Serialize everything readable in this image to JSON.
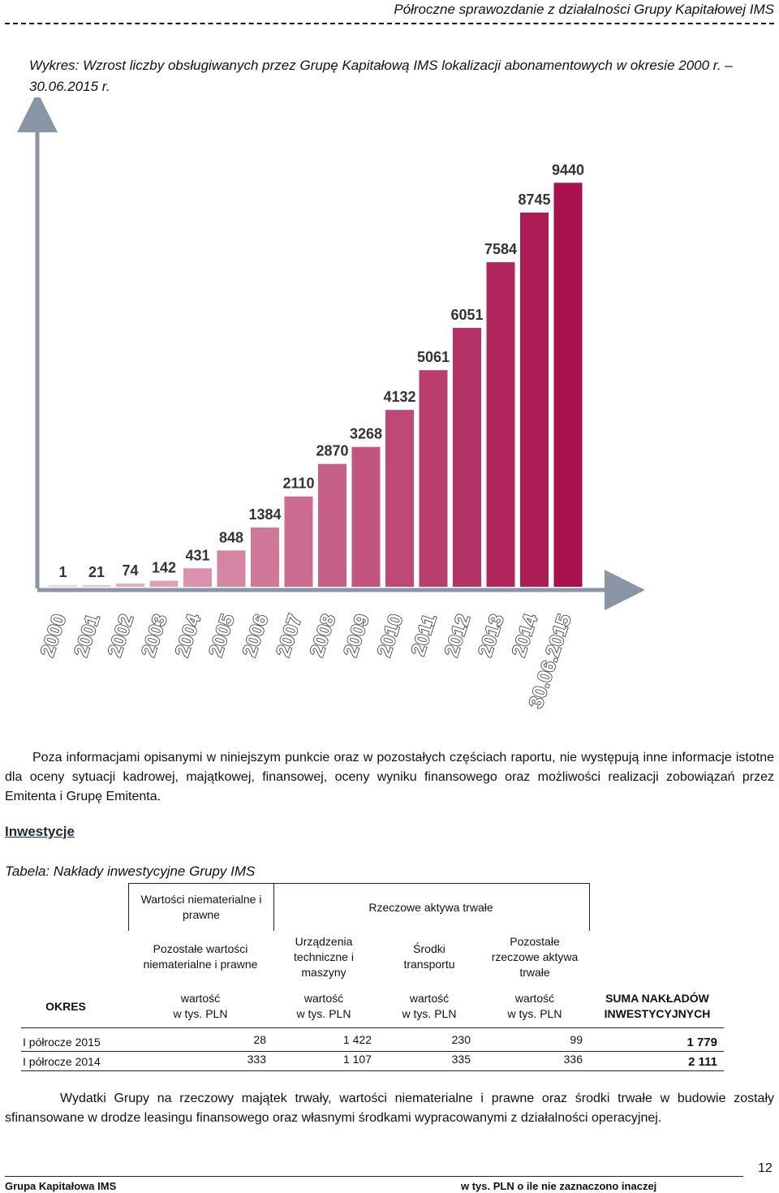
{
  "header": {
    "title": "Półroczne sprawozdanie z działalności Grupy Kapitałowej IMS"
  },
  "chart_caption": "Wykres: Wzrost liczby obsługiwanych przez Grupę Kapitałową IMS lokalizacji abonamentowych w okresie 2000 r. – 30.06.2015 r.",
  "chart_data": {
    "type": "bar",
    "title": "Wykres: Wzrost liczby obsługiwanych przez Grupę Kapitałową IMS lokalizacji abonamentowych w okresie 2000 r. – 30.06.2015 r.",
    "categories": [
      "2000",
      "2001",
      "2002",
      "2003",
      "2004",
      "2005",
      "2006",
      "2007",
      "2008",
      "2009",
      "2010",
      "2011",
      "2012",
      "2013",
      "2014",
      "30.06.2015"
    ],
    "values": [
      1,
      21,
      74,
      142,
      431,
      848,
      1384,
      2110,
      2870,
      3268,
      4132,
      5061,
      6051,
      7584,
      8745,
      9440
    ],
    "ylim": [
      0,
      11000
    ],
    "grid": false,
    "legend": "none",
    "data_labels": true,
    "colors": {
      "light": "#f3cfdb",
      "dark": "#a8114d",
      "axis": "#8a96a6"
    }
  },
  "paragraph_1": "Poza informacjami opisanymi w niniejszym punkcie oraz w pozostałych częściach raportu, nie występują inne informacje istotne dla oceny sytuacji kadrowej, majątkowej, finansowej, oceny wyniku finansowego oraz możliwości realizacji zobowiązań przez Emitenta i Grupę Emitenta.",
  "section_heading": "Inwestycje",
  "table_caption": "Tabela: Nakłady inwestycyjne Grupy IMS",
  "table": {
    "group_wni": "Wartości niematerialne i prawne",
    "group_rat": "Rzeczowe aktywa trwałe",
    "col_headers": [
      "Pozostałe wartości niematerialne i prawne",
      "Urządzenia techniczne i maszyny",
      "Środki transportu",
      "Pozostałe rzeczowe aktywa trwałe"
    ],
    "okres_label": "OKRES",
    "unit_label_1": "wartość",
    "unit_label_2": "w tys. PLN",
    "sum_header": "SUMA NAKŁADÓW INWESTYCYJNYCH",
    "rows": [
      {
        "label": "I półrocze 2015",
        "values": [
          "28",
          "1 422",
          "230",
          "99"
        ],
        "sum": "1 779"
      },
      {
        "label": "I półrocze 2014",
        "values": [
          "333",
          "1 107",
          "335",
          "336"
        ],
        "sum": "2 111"
      }
    ]
  },
  "paragraph_2": "Wydatki Grupy na rzeczowy majątek trwały, wartości niematerialne i prawne oraz środki trwałe w budowie zostały sfinansowane w drodze leasingu finansowego oraz własnymi środkami wypracowanymi z działalności operacyjnej.",
  "footer": {
    "left": "Grupa Kapitałowa IMS",
    "right": "w tys. PLN o ile nie zaznaczono inaczej",
    "page_number": "12"
  }
}
